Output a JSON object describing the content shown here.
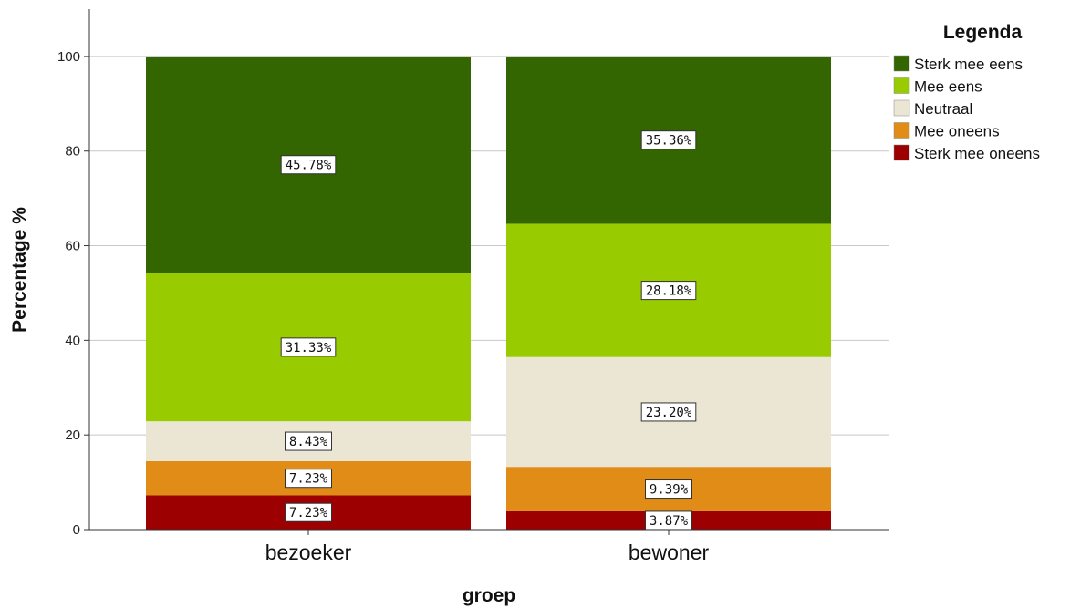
{
  "chart_data": {
    "type": "bar",
    "stacked": true,
    "categories": [
      "bezoeker",
      "bewoner"
    ],
    "series": [
      {
        "name": "Sterk mee oneens",
        "color": "#9c0000",
        "values": [
          7.23,
          3.87
        ],
        "labels": [
          "7.23%",
          "3.87%"
        ]
      },
      {
        "name": "Mee oneens",
        "color": "#e08c16",
        "values": [
          7.23,
          9.39
        ],
        "labels": [
          "7.23%",
          "9.39%"
        ]
      },
      {
        "name": "Neutraal",
        "color": "#ebe5d4",
        "values": [
          8.43,
          23.2
        ],
        "labels": [
          "8.43%",
          "23.20%"
        ]
      },
      {
        "name": "Mee eens",
        "color": "#99cc00",
        "values": [
          31.33,
          28.18
        ],
        "labels": [
          "31.33%",
          "28.18%"
        ]
      },
      {
        "name": "Sterk mee eens",
        "color": "#336600",
        "values": [
          45.78,
          35.36
        ],
        "labels": [
          "45.78%",
          "35.36%"
        ]
      }
    ],
    "xlabel": "groep",
    "ylabel": "Percentage %",
    "ylim": [
      0,
      110
    ],
    "yticks": [
      0,
      20,
      40,
      60,
      80,
      100
    ],
    "grid": true,
    "legend": {
      "title": "Legenda",
      "placement": "top-right",
      "order": [
        "Sterk mee eens",
        "Mee eens",
        "Neutraal",
        "Mee oneens",
        "Sterk mee oneens"
      ]
    }
  }
}
